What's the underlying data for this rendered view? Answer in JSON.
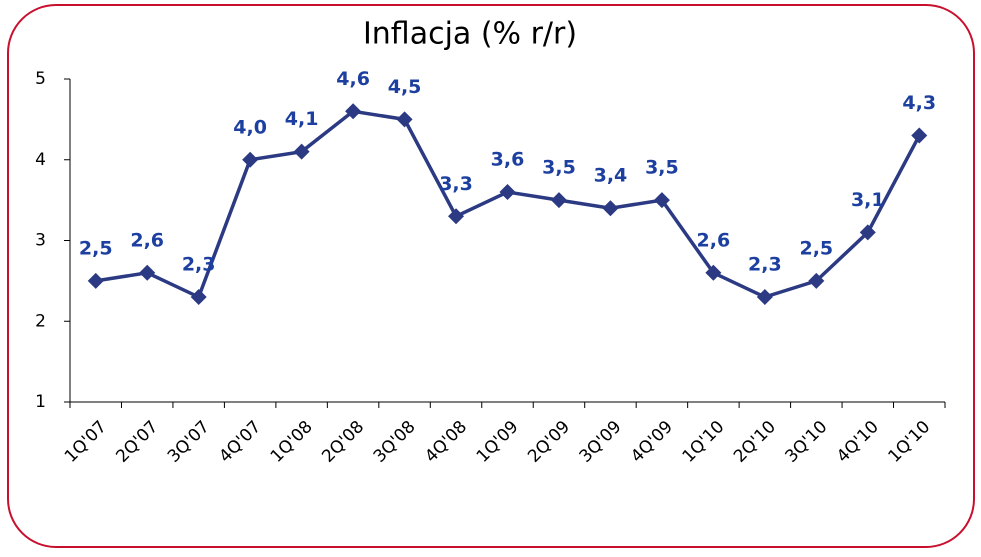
{
  "chart_data": {
    "type": "line",
    "title": "Inflacja (% r/r)",
    "categories": [
      "1Q'07",
      "2Q'07",
      "3Q'07",
      "4Q'07",
      "1Q'08",
      "2Q'08",
      "3Q'08",
      "4Q'08",
      "1Q'09",
      "2Q'09",
      "3Q'09",
      "4Q'09",
      "1Q'10",
      "2Q'10",
      "3Q'10",
      "4Q'10",
      "1Q'10"
    ],
    "series": [
      {
        "name": "Inflacja",
        "color": "#2b3a82",
        "values": [
          2.5,
          2.6,
          2.3,
          4.0,
          4.1,
          4.6,
          4.5,
          3.3,
          3.6,
          3.5,
          3.4,
          3.5,
          2.6,
          2.3,
          2.5,
          3.1,
          4.3
        ],
        "value_labels": [
          "2,5",
          "2,6",
          "2,3",
          "4,0",
          "4,1",
          "4,6",
          "4,5",
          "3,3",
          "3,6",
          "3,5",
          "3,4",
          "3,5",
          "2,6",
          "2,3",
          "2,5",
          "3,1",
          "4,3"
        ]
      }
    ],
    "ylim": [
      1,
      5
    ],
    "yticks": [
      1,
      2,
      3,
      4,
      5
    ],
    "grid": false
  }
}
